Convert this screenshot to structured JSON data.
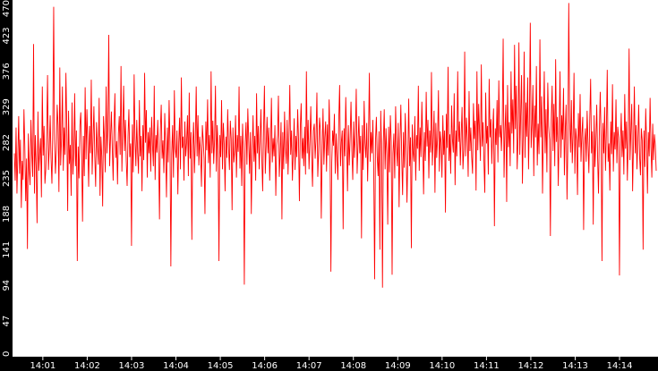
{
  "chart_data": {
    "type": "line",
    "title": "",
    "xlabel": "",
    "ylabel": "",
    "ylim": [
      0,
      470
    ],
    "yticks": [
      0,
      47,
      94,
      141,
      188,
      235,
      282,
      329,
      376,
      423,
      470
    ],
    "xticks": [
      "14:01",
      "14:02",
      "14:03",
      "14:04",
      "14:05",
      "14:06",
      "14:07",
      "14:08",
      "14:09",
      "14:10",
      "14:11",
      "14:12",
      "14:13",
      "14:14"
    ],
    "x_range": [
      "14:00:19",
      "14:14:52"
    ],
    "series_color": "#ff0000",
    "background": "#ffffff",
    "frame_background": "#000000",
    "series": [
      {
        "values": [
          268,
          232,
          302,
          215,
          264,
          317,
          241,
          286,
          196,
          258,
          233,
          326,
          278,
          205,
          261,
          142,
          294,
          247,
          226,
          312,
          268,
          237,
          412,
          215,
          292,
          251,
          176,
          323,
          245,
          268,
          288,
          210,
          356,
          265,
          304,
          228,
          247,
          294,
          371,
          246,
          274,
          318,
          261,
          228,
          298,
          461,
          286,
          241,
          272,
          332,
          305,
          217,
          381,
          252,
          288,
          356,
          245,
          302,
          266,
          374,
          305,
          192,
          324,
          254,
          279,
          212,
          335,
          240,
          268,
          347,
          251,
          298,
          126,
          277,
          235,
          305,
          322,
          267,
          178,
          291,
          238,
          355,
          260,
          326,
          282,
          224,
          304,
          268,
          365,
          240,
          285,
          330,
          264,
          224,
          309,
          277,
          253,
          341,
          212,
          290,
          264,
          198,
          317,
          288,
          243,
          356,
          268,
          302,
          424,
          251,
          288,
          323,
          276,
          232,
          301,
          347,
          262,
          284,
          227,
          294,
          317,
          266,
          383,
          244,
          299,
          357,
          271,
          312,
          258,
          225,
          290,
          326,
          263,
          281,
          146,
          306,
          243,
          372,
          287,
          251,
          312,
          269,
          241,
          338,
          264,
          291,
          218,
          305,
          259,
          374,
          282,
          325,
          236,
          296,
          268,
          302,
          244,
          316,
          279,
          251,
          357,
          233,
          292,
          269,
          312,
          268,
          181,
          298,
          332,
          261,
          285,
          242,
          321,
          274,
          210,
          302,
          256,
          338,
          283,
          119,
          268,
          305,
          236,
          351,
          274,
          262,
          298,
          214,
          282,
          315,
          247,
          368,
          275,
          290,
          232,
          310,
          264,
          282,
          318,
          238,
          348,
          261,
          296,
          154,
          278,
          309,
          242,
          286,
          356,
          264,
          318,
          252,
          290,
          271,
          224,
          305,
          285,
          261,
          188,
          310,
          272,
          339,
          255,
          292,
          236,
          376,
          268,
          311,
          254,
          286,
          357,
          244,
          305,
          273,
          126,
          292,
          263,
          338,
          247,
          308,
          281,
          218,
          290,
          262,
          326,
          275,
          246,
          311,
          287,
          193,
          302,
          256,
          271,
          318,
          236,
          292,
          270,
          356,
          248,
          291,
          225,
          307,
          267,
          95,
          282,
          309,
          253,
          327,
          286,
          241,
          296,
          188,
          272,
          318,
          257,
          291,
          232,
          347,
          268,
          304,
          247,
          285,
          326,
          262,
          218,
          298,
          357,
          241,
          279,
          316,
          268,
          302,
          232,
          274,
          341,
          256,
          288,
          264,
          305,
          212,
          278,
          292,
          344,
          237,
          268,
          309,
          181,
          296,
          247,
          323,
          276,
          254,
          312,
          240,
          287,
          358,
          266,
          298,
          232,
          271,
          314,
          246,
          291,
          263,
          326,
          285,
          205,
          302,
          334,
          261,
          288,
          251,
          303,
          240,
          376,
          268,
          312,
          247,
          285,
          330,
          262,
          224,
          298,
          307,
          261,
          288,
          348,
          237,
          271,
          315,
          298,
          182,
          268,
          327,
          253,
          289,
          310,
          244,
          306,
          265,
          339,
          282,
          112,
          256,
          298,
          278,
          320,
          241,
          294,
          262,
          233,
          312,
          358,
          251,
          283,
          298,
          168,
          301,
          264,
          342,
          286,
          218,
          305,
          252,
          289,
          336,
          271,
          233,
          310,
          262,
          294,
          353,
          241,
          278,
          317,
          268,
          291,
          156,
          305,
          246,
          337,
          282,
          262,
          308,
          231,
          289,
          374,
          257,
          296,
          268,
          312,
          246,
          102,
          284,
          316,
          262,
          238,
          297,
          141,
          324,
          268,
          91,
          283,
          326,
          247,
          301,
          265,
          174,
          303,
          243,
          318,
          283,
          108,
          268,
          294,
          235,
          330,
          277,
          251,
          308,
          197,
          285,
          332,
          262,
          213,
          296,
          249,
          321,
          277,
          203,
          265,
          340,
          251,
          289,
          143,
          306,
          270,
          257,
          317,
          232,
          292,
          274,
          357,
          245,
          302,
          263,
          336,
          284,
          214,
          296,
          258,
          349,
          277,
          312,
          235,
          298,
          269,
          375,
          252,
          286,
          324,
          216,
          308,
          262,
          289,
          351,
          244,
          297,
          282,
          236,
          318,
          266,
          298,
          190,
          320,
          275,
          382,
          258,
          293,
          241,
          331,
          286,
          269,
          347,
          226,
          298,
          264,
          376,
          283,
          310,
          252,
          292,
          329,
          247,
          273,
          402,
          264,
          315,
          288,
          237,
          350,
          271,
          302,
          263,
          241,
          334,
          287,
          311,
          219,
          376,
          272,
          333,
          296,
          258,
          385,
          277,
          309,
          258,
          216,
          348,
          281,
          304,
          240,
          366,
          289,
          313,
          254,
          298,
          327,
          172,
          301,
          279,
          338,
          256,
          364,
          289,
          305,
          271,
          312,
          419,
          236,
          297,
          332,
          204,
          358,
          276,
          309,
          251,
          376,
          294,
          339,
          268,
          411,
          300,
          357,
          247,
          289,
          414,
          266,
          318,
          371,
          228,
          294,
          402,
          262,
          335,
          290,
          368,
          247,
          314,
          440,
          275,
          306,
          358,
          238,
          331,
          289,
          383,
          252,
          307,
          267,
          418,
          289,
          343,
          215,
          301,
          376,
          268,
          326,
          243,
          361,
          304,
          286,
          159,
          312,
          357,
          271,
          333,
          251,
          392,
          283,
          316,
          225,
          297,
          376,
          262,
          318,
          286,
          354,
          239,
          298,
          332,
          207,
          281,
          466,
          312,
          269,
          338,
          255,
          294,
          374,
          241,
          301,
          285,
          213,
          321,
          276,
          346,
          257,
          294,
          316,
          167,
          280,
          301,
          257,
          324,
          282,
          242,
          312,
          366,
          268,
          297,
          174,
          318,
          250,
          285,
          332,
          262,
          215,
          298,
          349,
          288,
          126,
          308,
          268,
          329,
          245,
          296,
          378,
          257,
          281,
          219,
          310,
          267,
          359,
          244,
          296,
          273,
          339,
          255,
          303,
          289,
          107,
          276,
          321,
          263,
          298,
          240,
          346,
          274,
          310,
          232,
          287,
          406,
          259,
          296,
          333,
          218,
          279,
          356,
          268,
          305,
          247,
          286,
          332,
          264,
          239,
          301,
          285,
          141,
          298,
          250,
          327,
          282,
          215,
          296,
          264,
          341,
          276,
          236,
          307,
          259,
          293,
          278,
          245
        ]
      }
    ]
  }
}
